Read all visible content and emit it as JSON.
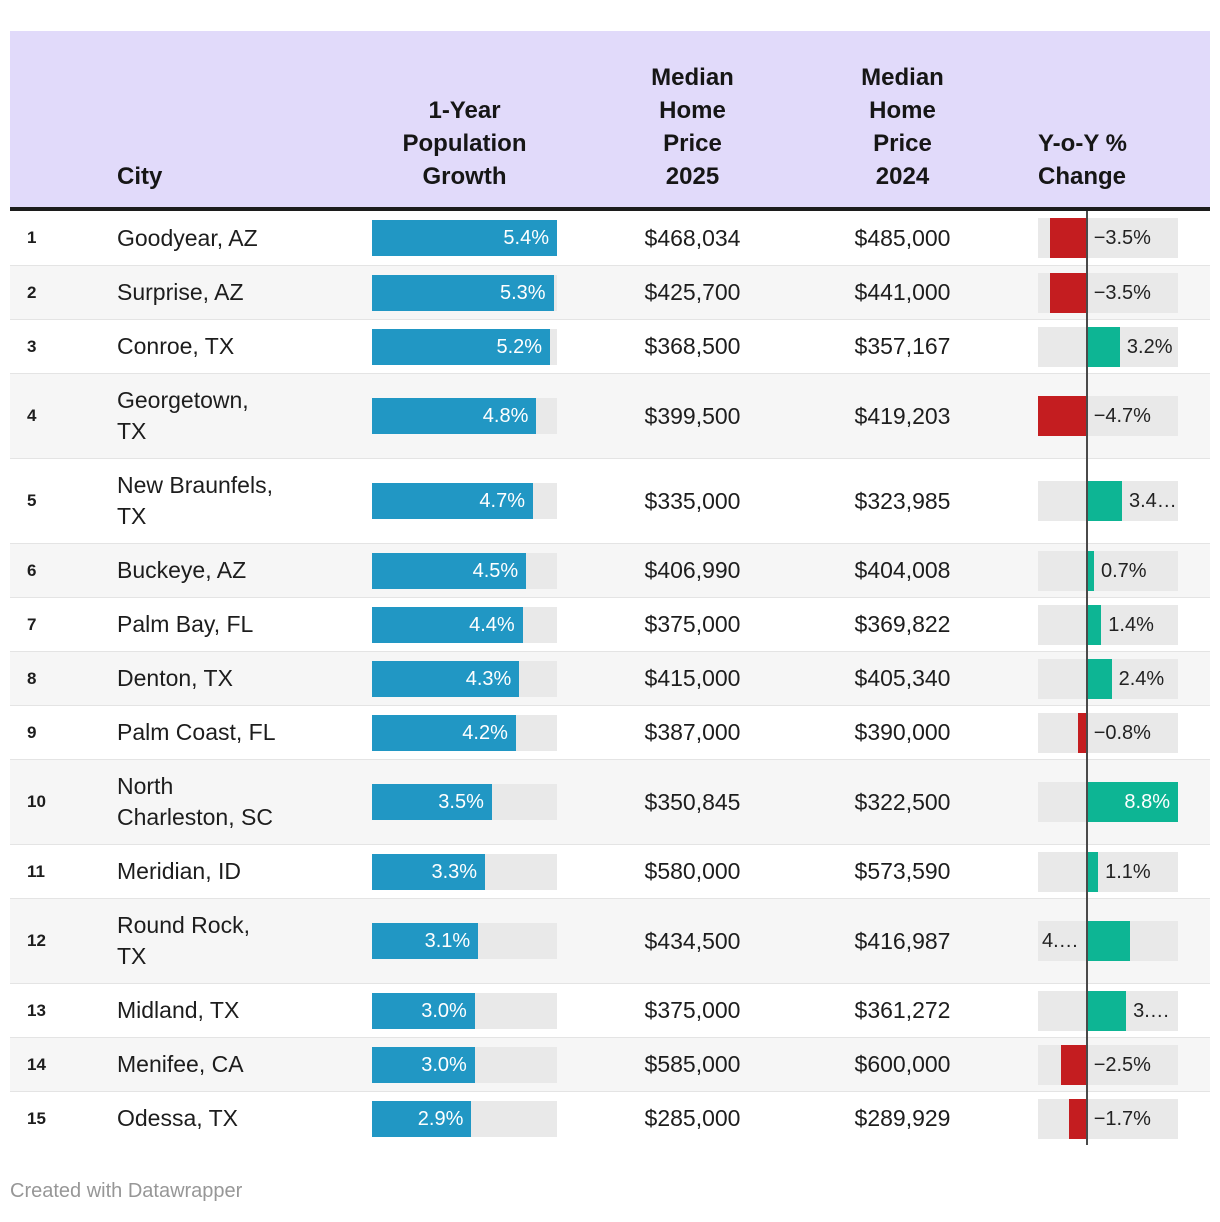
{
  "header": {
    "rank": "",
    "city": "City",
    "growth": "1-Year\nPopulation\nGrowth",
    "price_2025": "Median\nHome\nPrice\n2025",
    "price_2024": "Median\nHome\nPrice\n2024",
    "yoy": "Y-o-Y %\nChange"
  },
  "footer": {
    "attribution": "Created with Datawrapper"
  },
  "colors": {
    "header_bg": "#e1dafa",
    "header_border": "#1c1c1c",
    "growth_bar": "#2197c4",
    "positive_bar": "#0db594",
    "negative_bar": "#c41d20",
    "bar_track": "#e9e9e9",
    "row_alt": "#f6f6f6",
    "zero_line": "#4a4a4a"
  },
  "chart_data": {
    "type": "table",
    "title": "",
    "columns": [
      "City",
      "1-Year Population Growth",
      "Median Home Price 2025",
      "Median Home Price 2024",
      "Y-o-Y % Change"
    ],
    "growth_axis": {
      "min": 0,
      "max": 5.4,
      "unit": "%"
    },
    "yoy_axis": {
      "min": -4.7,
      "max": 8.8,
      "unit": "%"
    },
    "rows": [
      {
        "rank": "1",
        "city": "Goodyear, AZ",
        "growth_pct": 5.4,
        "growth_label": "5.4%",
        "price_2025": "$468,034",
        "price_2024": "$485,000",
        "yoy_pct": -3.5,
        "yoy_label": "−3.5%",
        "yoy_label_pos": "auto"
      },
      {
        "rank": "2",
        "city": "Surprise, AZ",
        "growth_pct": 5.3,
        "growth_label": "5.3%",
        "price_2025": "$425,700",
        "price_2024": "$441,000",
        "yoy_pct": -3.5,
        "yoy_label": "−3.5%",
        "yoy_label_pos": "auto"
      },
      {
        "rank": "3",
        "city": "Conroe, TX",
        "growth_pct": 5.2,
        "growth_label": "5.2%",
        "price_2025": "$368,500",
        "price_2024": "$357,167",
        "yoy_pct": 3.2,
        "yoy_label": "3.2%",
        "yoy_label_pos": "auto"
      },
      {
        "rank": "4",
        "city": "Georgetown,\nTX",
        "growth_pct": 4.8,
        "growth_label": "4.8%",
        "price_2025": "$399,500",
        "price_2024": "$419,203",
        "yoy_pct": -4.7,
        "yoy_label": "−4.7%",
        "yoy_label_pos": "auto"
      },
      {
        "rank": "5",
        "city": "New Braunfels,\nTX",
        "growth_pct": 4.7,
        "growth_label": "4.7%",
        "price_2025": "$335,000",
        "price_2024": "$323,985",
        "yoy_pct": 3.4,
        "yoy_label": "3.4…",
        "yoy_label_pos": "auto"
      },
      {
        "rank": "6",
        "city": "Buckeye, AZ",
        "growth_pct": 4.5,
        "growth_label": "4.5%",
        "price_2025": "$406,990",
        "price_2024": "$404,008",
        "yoy_pct": 0.7,
        "yoy_label": "0.7%",
        "yoy_label_pos": "auto"
      },
      {
        "rank": "7",
        "city": "Palm Bay, FL",
        "growth_pct": 4.4,
        "growth_label": "4.4%",
        "price_2025": "$375,000",
        "price_2024": "$369,822",
        "yoy_pct": 1.4,
        "yoy_label": "1.4%",
        "yoy_label_pos": "auto"
      },
      {
        "rank": "8",
        "city": "Denton, TX",
        "growth_pct": 4.3,
        "growth_label": "4.3%",
        "price_2025": "$415,000",
        "price_2024": "$405,340",
        "yoy_pct": 2.4,
        "yoy_label": "2.4%",
        "yoy_label_pos": "auto"
      },
      {
        "rank": "9",
        "city": "Palm Coast, FL",
        "growth_pct": 4.2,
        "growth_label": "4.2%",
        "price_2025": "$387,000",
        "price_2024": "$390,000",
        "yoy_pct": -0.8,
        "yoy_label": "−0.8%",
        "yoy_label_pos": "auto"
      },
      {
        "rank": "10",
        "city": "North\nCharleston, SC",
        "growth_pct": 3.5,
        "growth_label": "3.5%",
        "price_2025": "$350,845",
        "price_2024": "$322,500",
        "yoy_pct": 8.8,
        "yoy_label": "8.8%",
        "yoy_label_pos": "inside"
      },
      {
        "rank": "11",
        "city": "Meridian, ID",
        "growth_pct": 3.3,
        "growth_label": "3.3%",
        "price_2025": "$580,000",
        "price_2024": "$573,590",
        "yoy_pct": 1.1,
        "yoy_label": "1.1%",
        "yoy_label_pos": "auto"
      },
      {
        "rank": "12",
        "city": "Round Rock,\nTX",
        "growth_pct": 3.1,
        "growth_label": "3.1%",
        "price_2025": "$434,500",
        "price_2024": "$416,987",
        "yoy_pct": 4.2,
        "yoy_label": "4.…",
        "yoy_label_pos": "left"
      },
      {
        "rank": "13",
        "city": "Midland, TX",
        "growth_pct": 3.0,
        "growth_label": "3.0%",
        "price_2025": "$375,000",
        "price_2024": "$361,272",
        "yoy_pct": 3.8,
        "yoy_label": "3.…",
        "yoy_label_pos": "auto"
      },
      {
        "rank": "14",
        "city": "Menifee, CA",
        "growth_pct": 3.0,
        "growth_label": "3.0%",
        "price_2025": "$585,000",
        "price_2024": "$600,000",
        "yoy_pct": -2.5,
        "yoy_label": "−2.5%",
        "yoy_label_pos": "auto"
      },
      {
        "rank": "15",
        "city": "Odessa, TX",
        "growth_pct": 2.9,
        "growth_label": "2.9%",
        "price_2025": "$285,000",
        "price_2024": "$289,929",
        "yoy_pct": -1.7,
        "yoy_label": "−1.7%",
        "yoy_label_pos": "auto"
      }
    ]
  }
}
